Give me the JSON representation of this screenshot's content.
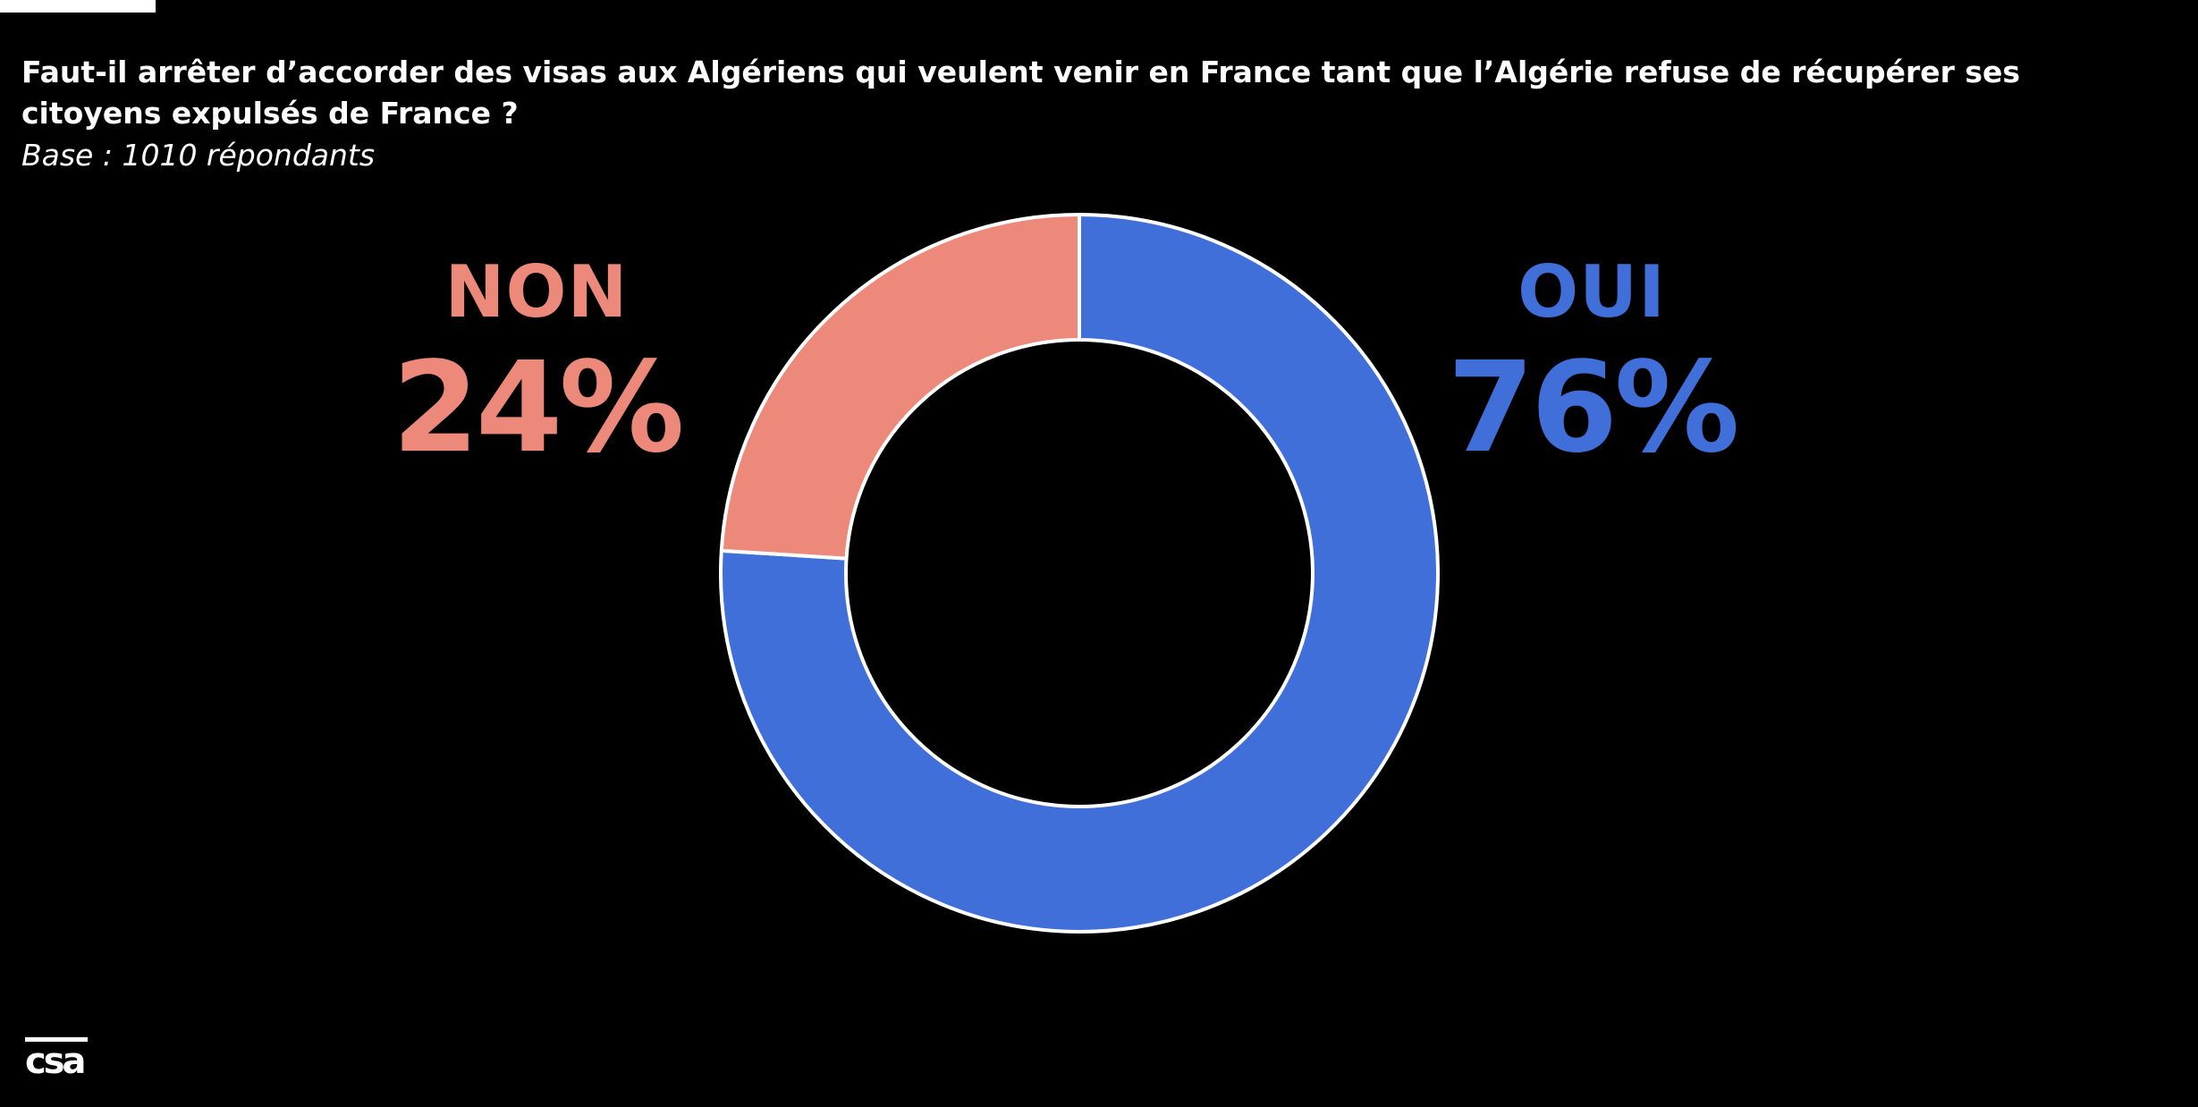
{
  "title": "Faut-il arrêter d’accorder des visas aux Algériens qui veulent venir en France tant que l’Algérie refuse de récupérer ses citoyens expulsés de France ?",
  "subtitle": "Base : 1010 répondants",
  "logo_text": "csa",
  "chart_data": {
    "type": "pie",
    "donut": true,
    "title": "Faut-il arrêter d’accorder des visas aux Algériens qui veulent venir en France tant que l’Algérie refuse de récupérer ses citoyens expulsés de France ?",
    "subtitle": "Base : 1010 répondants",
    "slices": [
      {
        "label": "OUI",
        "value": 76,
        "display": "76%",
        "color": "#416fd9"
      },
      {
        "label": "NON",
        "value": 24,
        "display": "24%",
        "color": "#ed897a"
      }
    ],
    "start_angle_deg": 0,
    "direction": "clockwise",
    "legend": "none"
  },
  "colors": {
    "background": "#000000",
    "oui": "#416fd9",
    "non": "#ed897a",
    "text": "#ffffff",
    "slice_border": "#ffffff"
  }
}
